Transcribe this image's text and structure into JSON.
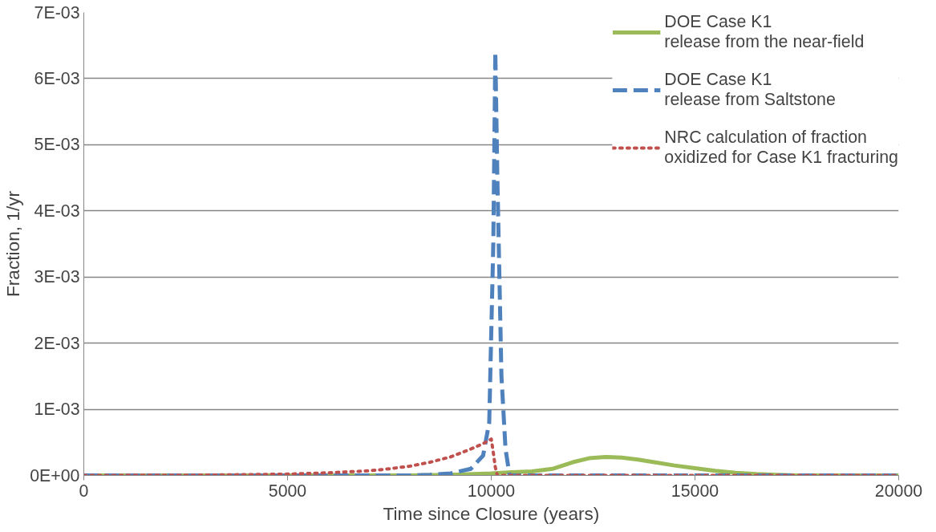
{
  "chart_data": {
    "type": "line",
    "xlabel": "Time since Closure (years)",
    "ylabel": "Fraction, 1/yr",
    "xlim": [
      0,
      20000
    ],
    "xticks": [
      0,
      5000,
      10000,
      15000,
      20000
    ],
    "ylim": [
      0,
      0.007
    ],
    "yticks": [
      {
        "value": 0,
        "label": "0E+00"
      },
      {
        "value": 0.001,
        "label": "1E-03"
      },
      {
        "value": 0.002,
        "label": "2E-03"
      },
      {
        "value": 0.003,
        "label": "3E-03"
      },
      {
        "value": 0.004,
        "label": "4E-03"
      },
      {
        "value": 0.005,
        "label": "5E-03"
      },
      {
        "value": 0.006,
        "label": "6E-03"
      },
      {
        "value": 0.007,
        "label": "7E-03"
      }
    ],
    "grid": "y",
    "legend": "top right",
    "series": [
      {
        "name": "DOE Case K1\nrelease from the near-field",
        "color": "#9bbb59",
        "line_style": "solid",
        "x": [
          0,
          5000,
          8000,
          9000,
          10000,
          10500,
          11000,
          11500,
          12000,
          12400,
          12800,
          13200,
          13600,
          14000,
          14500,
          15000,
          15500,
          16000,
          16500,
          17000,
          17500,
          18000,
          20000
        ],
        "values": [
          0,
          0,
          0,
          1e-05,
          3e-05,
          5e-05,
          6e-05,
          0.0001,
          0.0002,
          0.00026,
          0.00028,
          0.00027,
          0.00024,
          0.0002,
          0.00015,
          0.00011,
          7e-05,
          4e-05,
          2e-05,
          1e-05,
          0,
          0,
          0
        ]
      },
      {
        "name": "DOE Case K1\nrelease from Saltstone",
        "color": "#4f81bd",
        "line_style": "dashed",
        "x": [
          0,
          8000,
          8500,
          9000,
          9500,
          9800,
          9950,
          10050,
          10100,
          10150,
          10250,
          10350,
          10450,
          12000,
          20000
        ],
        "values": [
          0,
          0,
          1e-05,
          3e-05,
          0.0001,
          0.0003,
          0.0008,
          0.0035,
          0.0064,
          0.0045,
          0.0015,
          0.0004,
          0,
          0,
          0
        ]
      },
      {
        "name": "NRC calculation of fraction\noxidized for Case K1 fracturing",
        "color": "#c0504d",
        "line_style": "dotted",
        "x": [
          0,
          3000,
          5000,
          6000,
          7000,
          7500,
          8000,
          8500,
          9000,
          9500,
          9800,
          10000,
          10050,
          10100,
          10150,
          12000,
          20000
        ],
        "values": [
          0,
          5e-06,
          2e-05,
          4e-05,
          7e-05,
          0.0001,
          0.00014,
          0.0002,
          0.00028,
          0.0004,
          0.00048,
          0.00055,
          0.00035,
          0.00012,
          0,
          0,
          0
        ]
      }
    ]
  }
}
